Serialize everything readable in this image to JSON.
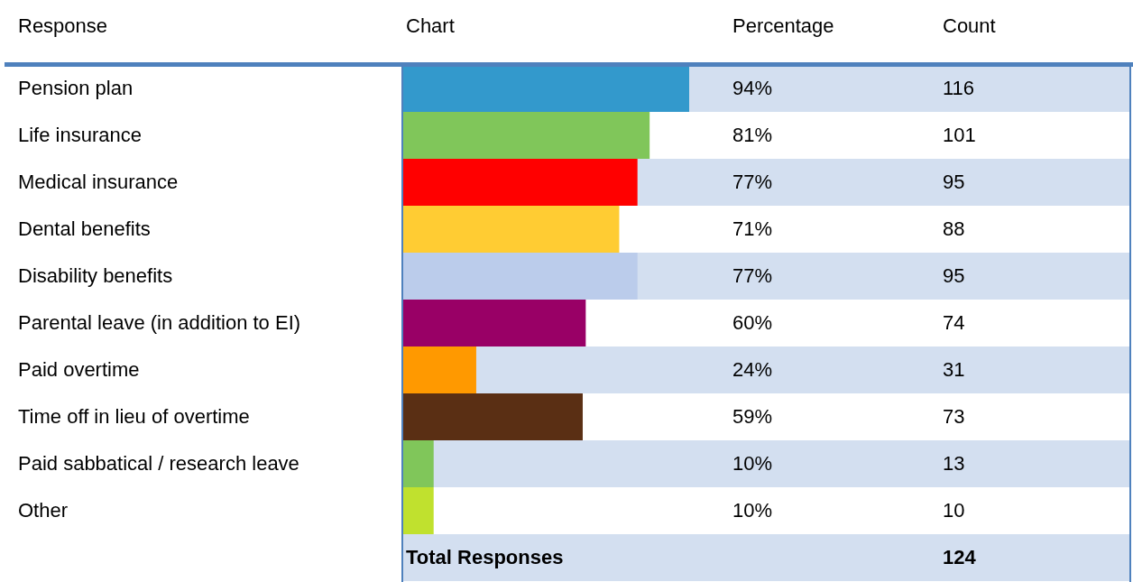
{
  "chart_data": {
    "type": "bar",
    "orientation": "horizontal",
    "ylabel": "Response",
    "xlabel": "Chart",
    "categories": [
      "Pension plan",
      "Life insurance",
      "Medical insurance",
      "Dental benefits",
      "Disability benefits",
      "Parental leave (in addition to EI)",
      "Paid overtime",
      "Time off in lieu of overtime",
      "Paid sabbatical / research leave",
      "Other"
    ],
    "values": [
      94,
      81,
      77,
      71,
      77,
      60,
      24,
      59,
      10,
      10
    ],
    "colors": [
      "#3399cc",
      "#80c65a",
      "#ff0000",
      "#ffcc33",
      "#bbcceb",
      "#990066",
      "#ff9900",
      "#5a2f14",
      "#80c65a",
      "#c0e12e"
    ],
    "value_labels": [
      "94%",
      "81%",
      "77%",
      "71%",
      "77%",
      "60%",
      "24%",
      "59%",
      "10%",
      "10%"
    ],
    "tick_labels": "y",
    "annotations": [
      "Percentage",
      "Count",
      "116",
      "101",
      "95",
      "88",
      "95",
      "74",
      "31",
      "73",
      "13",
      "10",
      "Total Responses",
      "124"
    ]
  }
}
